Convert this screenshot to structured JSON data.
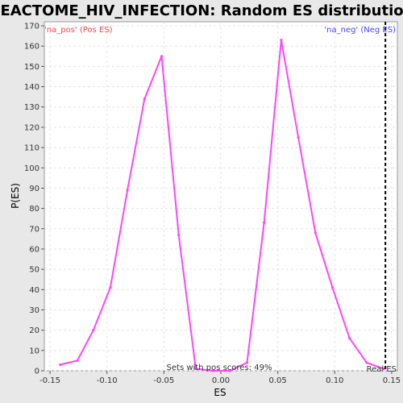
{
  "chart_data": {
    "type": "line",
    "title": "REACTOME_HIV_INFECTION: Random ES distribution",
    "xlabel": "ES",
    "ylabel": "P(ES)",
    "xlim": [
      -0.155,
      0.155
    ],
    "ylim": [
      0,
      172
    ],
    "x_ticks": [
      -0.15,
      -0.1,
      -0.05,
      0.0,
      0.05,
      0.1,
      0.15
    ],
    "x_tick_labels": [
      "-0.15",
      "-0.10",
      "-0.05",
      "0.00",
      "0.05",
      "0.10",
      "0.15"
    ],
    "y_ticks": [
      0,
      10,
      20,
      30,
      40,
      50,
      60,
      70,
      80,
      90,
      100,
      110,
      120,
      130,
      140,
      150,
      160,
      170
    ],
    "grid": true,
    "series": [
      {
        "color": "#ff44ff",
        "x": [
          -0.141,
          -0.126,
          -0.112,
          -0.097,
          -0.082,
          -0.067,
          -0.052,
          -0.037,
          -0.022,
          -0.007,
          0.008,
          0.023,
          0.038,
          0.053,
          0.068,
          0.083,
          0.098,
          0.113,
          0.128,
          0.143
        ],
        "y": [
          3,
          5,
          20,
          41,
          89,
          134,
          155,
          67,
          1,
          0,
          0,
          4,
          73,
          163,
          115,
          68,
          41,
          16,
          4,
          1
        ]
      }
    ],
    "real_es_x": 0.1445,
    "real_es_label": "Real ES",
    "legend_pos": "'na_pos' (Pos ES)",
    "legend_neg": "'na_neg' (Neg ES)",
    "legend_pos_color": "#ff4444",
    "legend_neg_color": "#4444ff",
    "annotation": "Sets with pos scores: 49%"
  }
}
